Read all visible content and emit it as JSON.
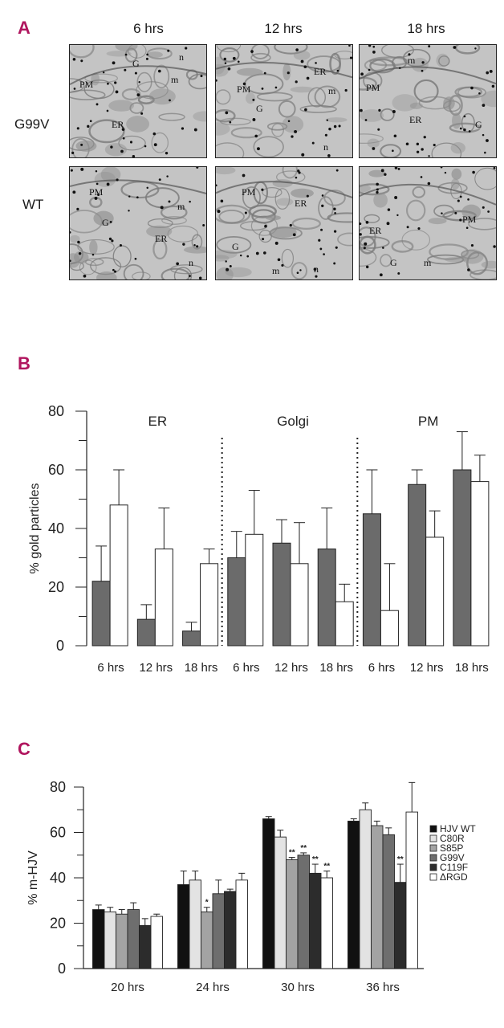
{
  "panel_a": {
    "letter": "A",
    "columns": [
      "6 hrs",
      "12 hrs",
      "18 hrs"
    ],
    "rows": [
      "G99V",
      "WT"
    ],
    "micrographs": [
      [
        [
          "PM",
          "G",
          "m",
          "n",
          "ER"
        ],
        [
          "PM",
          "ER",
          "G",
          "m",
          "n"
        ],
        [
          "PM",
          "m",
          "ER",
          "G"
        ]
      ],
      [
        [
          "PM",
          "G",
          "m",
          "ER",
          "n"
        ],
        [
          "PM",
          "ER",
          "G",
          "m",
          "n"
        ],
        [
          "ER",
          "PM",
          "G",
          "m"
        ]
      ]
    ]
  },
  "chart_data": [
    {
      "panel": "B",
      "type": "bar",
      "title": "",
      "ylabel": "% gold particles",
      "xlabel": "",
      "ylim": [
        0,
        80
      ],
      "yticks": [
        0,
        20,
        40,
        60,
        80
      ],
      "groups": [
        "ER",
        "Golgi",
        "PM"
      ],
      "categories": [
        "6 hrs",
        "12 hrs",
        "18 hrs"
      ],
      "series": [
        {
          "name": "G99V",
          "color": "#6b6b6b",
          "values": [
            [
              22,
              9,
              5
            ],
            [
              30,
              35,
              33
            ],
            [
              45,
              55,
              60
            ]
          ],
          "errors": [
            [
              12,
              5,
              3
            ],
            [
              9,
              8,
              14
            ],
            [
              15,
              5,
              13
            ]
          ]
        },
        {
          "name": "WT",
          "color": "#ffffff",
          "values": [
            [
              48,
              33,
              28
            ],
            [
              38,
              28,
              15
            ],
            [
              12,
              37,
              56
            ]
          ],
          "errors": [
            [
              12,
              14,
              5
            ],
            [
              15,
              14,
              6
            ],
            [
              16,
              9,
              9
            ]
          ]
        }
      ]
    },
    {
      "panel": "C",
      "type": "bar",
      "title": "",
      "ylabel": "% m-HJV",
      "xlabel": "",
      "ylim": [
        0,
        80
      ],
      "yticks": [
        0,
        20,
        40,
        60,
        80
      ],
      "categories": [
        "20 hrs",
        "24 hrs",
        "30 hrs",
        "36 hrs"
      ],
      "legend_position": "right",
      "series": [
        {
          "name": "HJV WT",
          "color": "#111111",
          "values": [
            26,
            37,
            66,
            65
          ],
          "errors": [
            2,
            6,
            1,
            1
          ],
          "marks": [
            "",
            "",
            "",
            ""
          ]
        },
        {
          "name": "C80R",
          "color": "#e3e3e3",
          "values": [
            25,
            39,
            58,
            70
          ],
          "errors": [
            2,
            4,
            3,
            3
          ],
          "marks": [
            "",
            "",
            "",
            ""
          ]
        },
        {
          "name": "S85P",
          "color": "#a3a3a3",
          "values": [
            24,
            25,
            48,
            63
          ],
          "errors": [
            2,
            2,
            1,
            2
          ],
          "marks": [
            "",
            "*",
            "**",
            ""
          ]
        },
        {
          "name": "G99V",
          "color": "#6e6e6e",
          "values": [
            26,
            33,
            50,
            59
          ],
          "errors": [
            3,
            6,
            1,
            3
          ],
          "marks": [
            "",
            "",
            "**",
            ""
          ]
        },
        {
          "name": "C119F",
          "color": "#2c2c2c",
          "values": [
            19,
            34,
            42,
            38
          ],
          "errors": [
            3,
            1,
            4,
            8
          ],
          "marks": [
            "",
            "",
            "**",
            "**"
          ]
        },
        {
          "name": "ΔRGD",
          "color": "#ffffff",
          "values": [
            23,
            39,
            40,
            69
          ],
          "errors": [
            1,
            3,
            3,
            13
          ],
          "marks": [
            "",
            "",
            "**",
            ""
          ]
        }
      ]
    }
  ],
  "panel_b_letter": "B",
  "panel_c_letter": "C"
}
